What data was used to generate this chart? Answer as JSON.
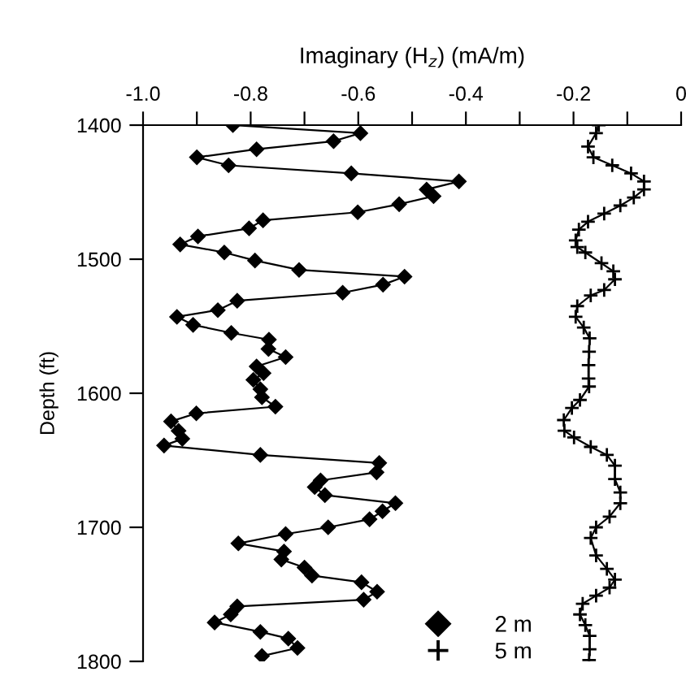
{
  "chart_data": {
    "type": "line",
    "xlabel": "Imaginary (H$_{z}$) (mA/m)",
    "ylabel": "Depth (ft)",
    "xlim": [
      -1.0,
      0
    ],
    "ylim": [
      1800,
      1400
    ],
    "xticks": [
      {
        "value": -1.0,
        "label": "-1.0"
      },
      {
        "value": -0.9,
        "label": null
      },
      -0.8,
      {
        "value": -0.7,
        "label": null
      },
      -0.6,
      {
        "value": -0.5,
        "label": null
      },
      -0.4,
      {
        "value": -0.3,
        "label": null
      },
      -0.2,
      {
        "value": -0.1,
        "label": null
      },
      0
    ],
    "yticks": [
      1400,
      1500,
      1600,
      1700,
      1800
    ],
    "grid": false,
    "legend": "bottom right",
    "line_style": "solid",
    "series": [
      {
        "name": "2 m",
        "color": "#000000",
        "marker": "diamond",
        "x": [
          -0.833,
          -0.596,
          -0.646,
          -0.789,
          -0.9,
          -0.841,
          -0.613,
          -0.413,
          -0.473,
          -0.46,
          -0.524,
          -0.601,
          -0.777,
          -0.803,
          -0.898,
          -0.931,
          -0.849,
          -0.792,
          -0.71,
          -0.514,
          -0.554,
          -0.629,
          -0.825,
          -0.861,
          -0.937,
          -0.907,
          -0.836,
          -0.766,
          -0.767,
          -0.735,
          -0.789,
          -0.776,
          -0.795,
          -0.782,
          -0.779,
          -0.754,
          -0.901,
          -0.948,
          -0.934,
          -0.927,
          -0.961,
          -0.782,
          -0.561,
          -0.566,
          -0.67,
          -0.681,
          -0.662,
          -0.531,
          -0.555,
          -0.579,
          -0.656,
          -0.735,
          -0.823,
          -0.738,
          -0.743,
          -0.7,
          -0.686,
          -0.594,
          -0.565,
          -0.59,
          -0.825,
          -0.837,
          -0.867,
          -0.782,
          -0.73,
          -0.713,
          -0.779
        ],
        "values": [
          1400,
          1406,
          1412,
          1418,
          1424,
          1430,
          1436,
          1442,
          1448,
          1453,
          1459,
          1465,
          1471,
          1477,
          1483,
          1489,
          1495,
          1501,
          1508,
          1513,
          1519,
          1525,
          1531,
          1538,
          1543,
          1549,
          1555,
          1560,
          1567,
          1573,
          1580,
          1585,
          1590,
          1597,
          1603,
          1610,
          1615,
          1621,
          1628,
          1634,
          1639,
          1646,
          1652,
          1659,
          1665,
          1670,
          1676,
          1682,
          1688,
          1694,
          1700,
          1705,
          1712,
          1718,
          1724,
          1730,
          1736,
          1741,
          1748,
          1754,
          1759,
          1765,
          1771,
          1778,
          1783,
          1790,
          1796
        ]
      },
      {
        "name": "5 m",
        "color": "#000000",
        "marker": "cross",
        "x": [
          -0.153,
          -0.158,
          -0.173,
          -0.163,
          -0.128,
          -0.093,
          -0.069,
          -0.069,
          -0.088,
          -0.113,
          -0.143,
          -0.173,
          -0.19,
          -0.196,
          -0.193,
          -0.178,
          -0.148,
          -0.126,
          -0.123,
          -0.143,
          -0.168,
          -0.193,
          -0.196,
          -0.181,
          -0.17,
          -0.171,
          -0.172,
          -0.172,
          -0.171,
          -0.188,
          -0.203,
          -0.218,
          -0.217,
          -0.199,
          -0.168,
          -0.138,
          -0.123,
          -0.123,
          -0.113,
          -0.113,
          -0.133,
          -0.158,
          -0.168,
          -0.158,
          -0.138,
          -0.123,
          -0.133,
          -0.158,
          -0.183,
          -0.188,
          -0.178,
          -0.17,
          -0.17,
          -0.171
        ],
        "values": [
          1400,
          1406,
          1416,
          1424,
          1430,
          1436,
          1442,
          1448,
          1454,
          1460,
          1466,
          1472,
          1478,
          1486,
          1491,
          1495,
          1503,
          1509,
          1515,
          1523,
          1527,
          1535,
          1543,
          1551,
          1559,
          1569,
          1579,
          1589,
          1595,
          1605,
          1611,
          1620,
          1628,
          1633,
          1640,
          1646,
          1654,
          1664,
          1674,
          1682,
          1692,
          1700,
          1708,
          1721,
          1731,
          1739,
          1745,
          1751,
          1757,
          1765,
          1773,
          1781,
          1791,
          1799
        ]
      }
    ]
  }
}
